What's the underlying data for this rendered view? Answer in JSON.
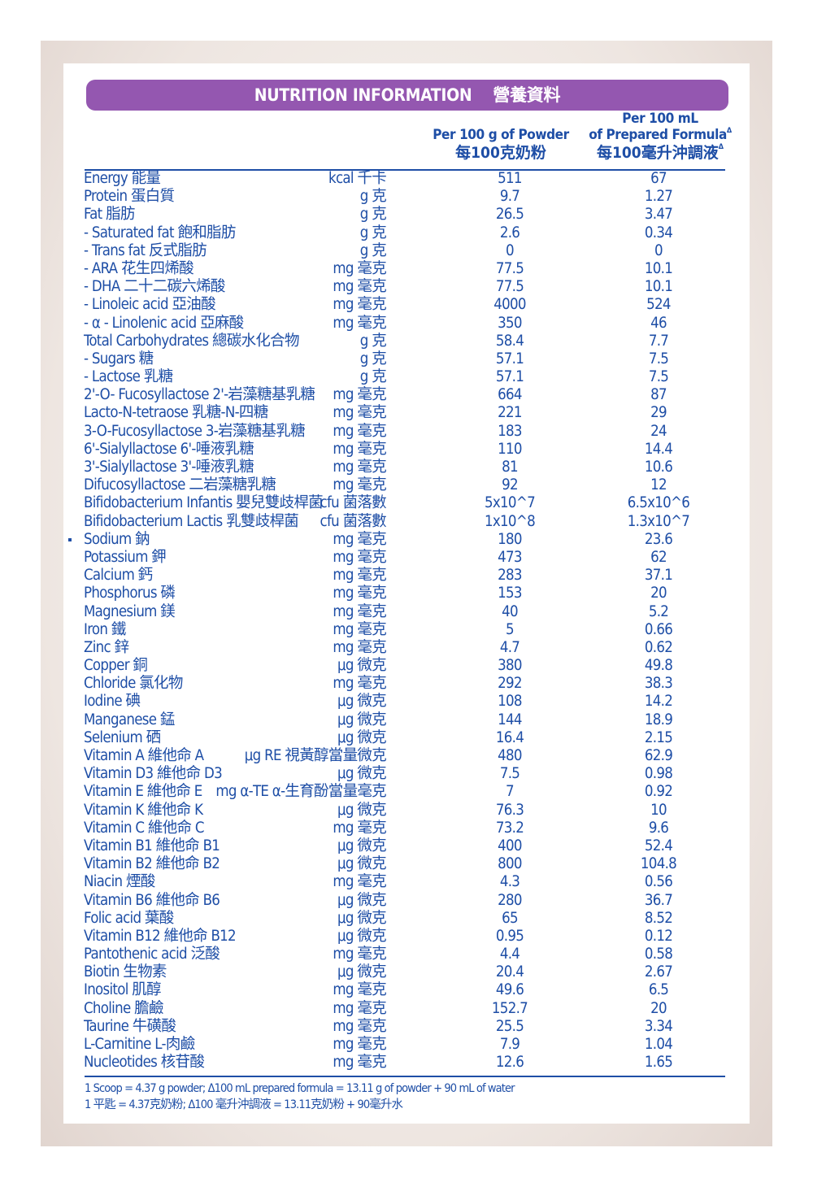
{
  "header": {
    "title_en": "NUTRITION INFORMATION",
    "title_zh": "營養資料"
  },
  "columns": {
    "powder_en": "Per 100 g of Powder",
    "powder_zh": "每100克奶粉",
    "prepared_en_line1": "Per 100 mL",
    "prepared_en_line2": "of Prepared Formula",
    "prepared_zh": "每100毫升沖調液",
    "delta_mark": "Δ"
  },
  "rows": [
    {
      "name": "Energy 能量",
      "unit": "kcal 千卡",
      "per_100g": "511",
      "per_100ml": "67"
    },
    {
      "name": "Protein 蛋白質",
      "unit": "g 克",
      "per_100g": "9.7",
      "per_100ml": "1.27"
    },
    {
      "name": "Fat 脂肪",
      "unit": "g 克",
      "per_100g": "26.5",
      "per_100ml": "3.47"
    },
    {
      "name": "- Saturated fat 飽和脂肪",
      "unit": "g 克",
      "per_100g": "2.6",
      "per_100ml": "0.34"
    },
    {
      "name": "- Trans fat 反式脂肪",
      "unit": "g 克",
      "per_100g": "0",
      "per_100ml": "0"
    },
    {
      "name": "- ARA 花生四烯酸",
      "unit": "mg 毫克",
      "per_100g": "77.5",
      "per_100ml": "10.1"
    },
    {
      "name": "- DHA 二十二碳六烯酸",
      "unit": "mg 毫克",
      "per_100g": "77.5",
      "per_100ml": "10.1"
    },
    {
      "name": "- Linoleic acid 亞油酸",
      "unit": "mg 毫克",
      "per_100g": "4000",
      "per_100ml": "524"
    },
    {
      "name": "- α - Linolenic acid 亞麻酸",
      "unit": "mg 毫克",
      "per_100g": "350",
      "per_100ml": "46"
    },
    {
      "name": "Total Carbohydrates 總碳水化合物",
      "unit": "g 克",
      "per_100g": "58.4",
      "per_100ml": "7.7"
    },
    {
      "name": "- Sugars 糖",
      "unit": "g 克",
      "per_100g": "57.1",
      "per_100ml": "7.5"
    },
    {
      "name": "- Lactose 乳糖",
      "unit": "g 克",
      "per_100g": "57.1",
      "per_100ml": "7.5"
    },
    {
      "name": "2'-O- Fucosyllactose 2'-岩藻糖基乳糖",
      "unit": "mg 毫克",
      "per_100g": "664",
      "per_100ml": "87"
    },
    {
      "name": "Lacto-N-tetraose 乳糖-N-四糖",
      "unit": "mg 毫克",
      "per_100g": "221",
      "per_100ml": "29"
    },
    {
      "name": "3-O-Fucosyllactose 3-岩藻糖基乳糖",
      "unit": "mg 毫克",
      "per_100g": "183",
      "per_100ml": "24"
    },
    {
      "name": "6'-Sialyllactose 6'-唾液乳糖",
      "unit": "mg 毫克",
      "per_100g": "110",
      "per_100ml": "14.4"
    },
    {
      "name": "3'-Sialyllactose 3'-唾液乳糖",
      "unit": "mg 毫克",
      "per_100g": "81",
      "per_100ml": "10.6"
    },
    {
      "name": "Difucosyllactose 二岩藻糖乳糖",
      "unit": "mg 毫克",
      "per_100g": "92",
      "per_100ml": "12"
    },
    {
      "name": "Bifidobacterium Infantis 嬰兒雙歧桿菌",
      "unit": "cfu 菌落數",
      "per_100g": "5x10^7",
      "per_100ml": "6.5x10^6"
    },
    {
      "name": "Bifidobacterium Lactis 乳雙歧桿菌",
      "unit": "cfu 菌落數",
      "per_100g": "1x10^8",
      "per_100ml": "1.3x10^7"
    },
    {
      "name": "Sodium 鈉",
      "unit": "mg 毫克",
      "per_100g": "180",
      "per_100ml": "23.6"
    },
    {
      "name": "Potassium 鉀",
      "unit": "mg 毫克",
      "per_100g": "473",
      "per_100ml": "62"
    },
    {
      "name": "Calcium 鈣",
      "unit": "mg 毫克",
      "per_100g": "283",
      "per_100ml": "37.1"
    },
    {
      "name": "Phosphorus 磷",
      "unit": "mg 毫克",
      "per_100g": "153",
      "per_100ml": "20"
    },
    {
      "name": "Magnesium 鎂",
      "unit": "mg 毫克",
      "per_100g": "40",
      "per_100ml": "5.2"
    },
    {
      "name": "Iron 鐵",
      "unit": "mg 毫克",
      "per_100g": "5",
      "per_100ml": "0.66"
    },
    {
      "name": "Zinc 鋅",
      "unit": "mg 毫克",
      "per_100g": "4.7",
      "per_100ml": "0.62"
    },
    {
      "name": "Copper 銅",
      "unit": "μg 微克",
      "per_100g": "380",
      "per_100ml": "49.8"
    },
    {
      "name": "Chloride 氯化物",
      "unit": "mg 毫克",
      "per_100g": "292",
      "per_100ml": "38.3"
    },
    {
      "name": "Iodine 碘",
      "unit": "μg 微克",
      "per_100g": "108",
      "per_100ml": "14.2"
    },
    {
      "name": "Manganese 錳",
      "unit": "μg 微克",
      "per_100g": "144",
      "per_100ml": "18.9"
    },
    {
      "name": "Selenium 硒",
      "unit": "μg 微克",
      "per_100g": "16.4",
      "per_100ml": "2.15"
    },
    {
      "name": "Vitamin A 維他命 A",
      "unit": "μg RE 視黃醇當量微克",
      "per_100g": "480",
      "per_100ml": "62.9"
    },
    {
      "name": "Vitamin D3 維他命 D3",
      "unit": "μg 微克",
      "per_100g": "7.5",
      "per_100ml": "0.98"
    },
    {
      "name": "Vitamin E 維他命 E",
      "unit": "mg α-TE α-生育酚當量毫克",
      "per_100g": "7",
      "per_100ml": "0.92"
    },
    {
      "name": "Vitamin K 維他命 K",
      "unit": "μg 微克",
      "per_100g": "76.3",
      "per_100ml": "10"
    },
    {
      "name": "Vitamin C 維他命 C",
      "unit": "mg 毫克",
      "per_100g": "73.2",
      "per_100ml": "9.6"
    },
    {
      "name": "Vitamin B1 維他命 B1",
      "unit": "μg 微克",
      "per_100g": "400",
      "per_100ml": "52.4"
    },
    {
      "name": "Vitamin B2 維他命 B2",
      "unit": "μg 微克",
      "per_100g": "800",
      "per_100ml": "104.8"
    },
    {
      "name": "Niacin 煙酸",
      "unit": "mg 毫克",
      "per_100g": "4.3",
      "per_100ml": "0.56"
    },
    {
      "name": "Vitamin B6 維他命 B6",
      "unit": "μg 微克",
      "per_100g": "280",
      "per_100ml": "36.7"
    },
    {
      "name": "Folic acid 葉酸",
      "unit": "μg 微克",
      "per_100g": "65",
      "per_100ml": "8.52"
    },
    {
      "name": "Vitamin B12 維他命 B12",
      "unit": "μg 微克",
      "per_100g": "0.95",
      "per_100ml": "0.12"
    },
    {
      "name": "Pantothenic acid 泛酸",
      "unit": "mg 毫克",
      "per_100g": "4.4",
      "per_100ml": "0.58"
    },
    {
      "name": "Biotin 生物素",
      "unit": "μg 微克",
      "per_100g": "20.4",
      "per_100ml": "2.67"
    },
    {
      "name": "Inositol 肌醇",
      "unit": "mg 毫克",
      "per_100g": "49.6",
      "per_100ml": "6.5"
    },
    {
      "name": "Choline 膽鹼",
      "unit": "mg 毫克",
      "per_100g": "152.7",
      "per_100ml": "20"
    },
    {
      "name": "Taurine 牛磺酸",
      "unit": "mg 毫克",
      "per_100g": "25.5",
      "per_100ml": "3.34"
    },
    {
      "name": "L-Carnitine L-肉鹼",
      "unit": "mg 毫克",
      "per_100g": "7.9",
      "per_100ml": "1.04"
    },
    {
      "name": "Nucleotides 核苷酸",
      "unit": "mg 毫克",
      "per_100g": "12.6",
      "per_100ml": "1.65"
    }
  ],
  "footnote": {
    "line1": "1 Scoop = 4.37 g powder; Δ100 mL prepared formula = 13.11 g of powder + 90 mL of water",
    "line2": "1 平匙 = 4.37克奶粉; Δ100 毫升沖調液 = 13.11克奶粉 + 90毫升水"
  },
  "colors": {
    "brand_purple": "#9457b0",
    "text_blue": "#1e4ea6"
  }
}
